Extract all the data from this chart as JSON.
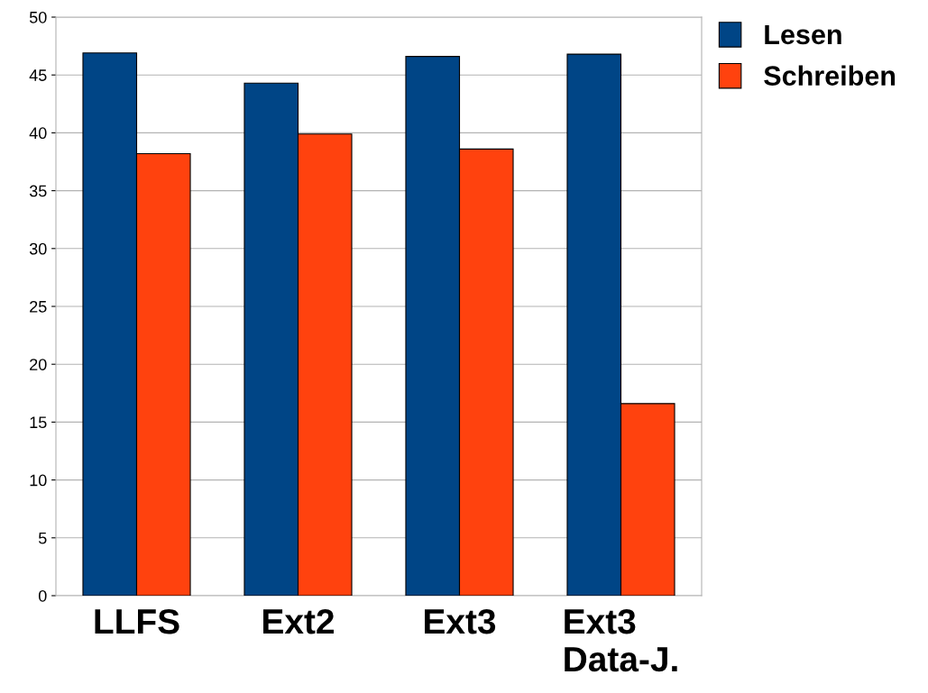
{
  "chart_data": {
    "type": "bar",
    "categories": [
      "LLFS",
      "Ext2",
      "Ext3",
      "Ext3\nData-J."
    ],
    "series": [
      {
        "name": "Lesen",
        "color": "#004586",
        "values": [
          46.9,
          44.3,
          46.6,
          46.8
        ]
      },
      {
        "name": "Schreiben",
        "color": "#ff420e",
        "values": [
          38.2,
          39.9,
          38.6,
          16.6
        ]
      }
    ],
    "ylim": [
      0,
      50
    ],
    "yticks": [
      0,
      5,
      10,
      15,
      20,
      25,
      30,
      35,
      40,
      45,
      50
    ],
    "grid": "y",
    "legend": "top right"
  }
}
